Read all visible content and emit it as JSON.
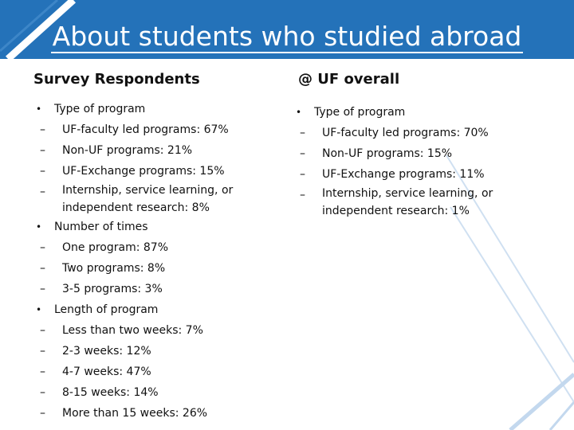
{
  "slide": {
    "title": "About students who studied abroad",
    "left": {
      "heading": "Survey Respondents",
      "groups": [
        {
          "label": "Type of program",
          "items": [
            "UF-faculty led programs: 67%",
            "Non-UF programs: 21%",
            "UF-Exchange programs: 15%",
            "Internship, service learning, or independent research: 8%"
          ]
        },
        {
          "label": "Number of times",
          "items": [
            "One program: 87%",
            "Two programs: 8%",
            "3-5 programs: 3%"
          ]
        },
        {
          "label": "Length of program",
          "items": [
            "Less than two weeks: 7%",
            "2-3 weeks: 12%",
            "4-7 weeks: 47%",
            "8-15 weeks: 14%",
            "More than 15 weeks: 26%"
          ]
        }
      ]
    },
    "right": {
      "heading": "@ UF overall",
      "groups": [
        {
          "label": "Type of program",
          "items": [
            "UF-faculty led programs: 70%",
            "Non-UF programs: 15%",
            "UF-Exchange programs: 11%",
            "Internship, service learning, or independent research: 1%"
          ]
        }
      ]
    }
  },
  "colors": {
    "title_bar": "#2472b9",
    "title_text": "#ffffff",
    "decor_lines": "#b9d3ec"
  }
}
